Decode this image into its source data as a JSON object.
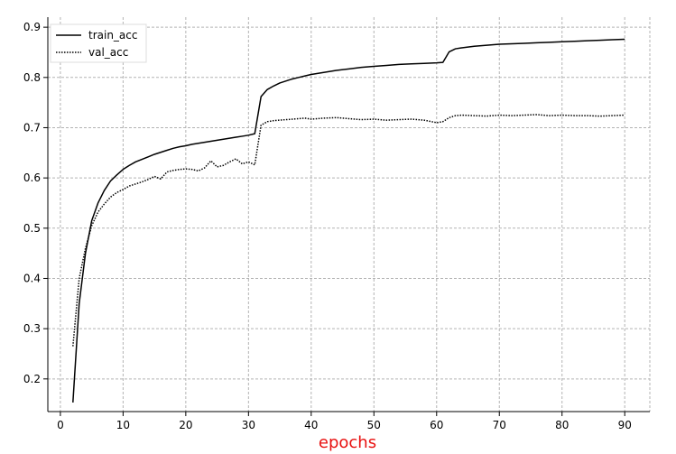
{
  "chart_data": {
    "type": "line",
    "title": "",
    "xlabel": "epochs",
    "ylabel": "",
    "xlim": [
      -2,
      94
    ],
    "ylim": [
      0.135,
      0.92
    ],
    "xticks": [
      0,
      10,
      20,
      30,
      40,
      50,
      60,
      70,
      80,
      90
    ],
    "yticks": [
      0.2,
      0.3,
      0.4,
      0.5,
      0.6,
      0.7,
      0.8,
      0.9
    ],
    "xtick_labels": [
      "0",
      "10",
      "20",
      "30",
      "40",
      "50",
      "60",
      "70",
      "80",
      "90"
    ],
    "ytick_labels": [
      "0.2",
      "0.3",
      "0.4",
      "0.5",
      "0.6",
      "0.7",
      "0.8",
      "0.9"
    ],
    "grid": true,
    "legend_position": "top-left",
    "colors": {
      "axis": "#000000",
      "grid": "#b3b3b3",
      "xlabel": "#e8100f",
      "series": "#000000"
    },
    "series": [
      {
        "name": "train_acc",
        "style": "solid",
        "x": [
          2,
          3,
          4,
          5,
          6,
          7,
          8,
          9,
          10,
          11,
          12,
          13,
          14,
          15,
          16,
          17,
          18,
          19,
          20,
          21,
          22,
          23,
          24,
          25,
          26,
          27,
          28,
          29,
          30,
          31,
          32,
          33,
          34,
          35,
          36,
          37,
          38,
          39,
          40,
          42,
          44,
          46,
          48,
          50,
          52,
          54,
          56,
          58,
          60,
          61,
          62,
          63,
          64,
          66,
          68,
          70,
          72,
          74,
          76,
          78,
          80,
          82,
          84,
          86,
          88,
          90
        ],
        "y": [
          0.153,
          0.35,
          0.45,
          0.515,
          0.55,
          0.575,
          0.594,
          0.606,
          0.617,
          0.625,
          0.632,
          0.637,
          0.642,
          0.647,
          0.651,
          0.655,
          0.659,
          0.662,
          0.664,
          0.667,
          0.669,
          0.671,
          0.673,
          0.675,
          0.677,
          0.679,
          0.681,
          0.683,
          0.685,
          0.688,
          0.762,
          0.776,
          0.783,
          0.789,
          0.793,
          0.797,
          0.8,
          0.803,
          0.806,
          0.81,
          0.814,
          0.817,
          0.82,
          0.822,
          0.824,
          0.826,
          0.827,
          0.828,
          0.829,
          0.83,
          0.851,
          0.857,
          0.859,
          0.862,
          0.864,
          0.866,
          0.867,
          0.868,
          0.869,
          0.87,
          0.871,
          0.872,
          0.873,
          0.874,
          0.875,
          0.876
        ]
      },
      {
        "name": "val_acc",
        "style": "dotted",
        "x": [
          2,
          3,
          4,
          5,
          6,
          7,
          8,
          9,
          10,
          11,
          12,
          13,
          14,
          15,
          16,
          17,
          18,
          19,
          20,
          21,
          22,
          23,
          24,
          25,
          26,
          27,
          28,
          29,
          30,
          31,
          32,
          33,
          34,
          35,
          36,
          37,
          38,
          39,
          40,
          42,
          44,
          46,
          48,
          50,
          52,
          54,
          56,
          58,
          60,
          61,
          62,
          63,
          64,
          66,
          68,
          70,
          72,
          74,
          76,
          78,
          80,
          82,
          84,
          86,
          88,
          90
        ],
        "y": [
          0.265,
          0.4,
          0.46,
          0.505,
          0.532,
          0.548,
          0.562,
          0.571,
          0.577,
          0.584,
          0.588,
          0.592,
          0.597,
          0.603,
          0.598,
          0.612,
          0.615,
          0.617,
          0.618,
          0.617,
          0.614,
          0.62,
          0.634,
          0.622,
          0.625,
          0.632,
          0.638,
          0.628,
          0.632,
          0.626,
          0.705,
          0.712,
          0.714,
          0.715,
          0.716,
          0.717,
          0.718,
          0.719,
          0.717,
          0.719,
          0.72,
          0.718,
          0.716,
          0.717,
          0.715,
          0.716,
          0.717,
          0.715,
          0.71,
          0.712,
          0.72,
          0.724,
          0.725,
          0.724,
          0.723,
          0.725,
          0.724,
          0.725,
          0.726,
          0.724,
          0.725,
          0.724,
          0.724,
          0.723,
          0.724,
          0.725
        ]
      }
    ]
  }
}
